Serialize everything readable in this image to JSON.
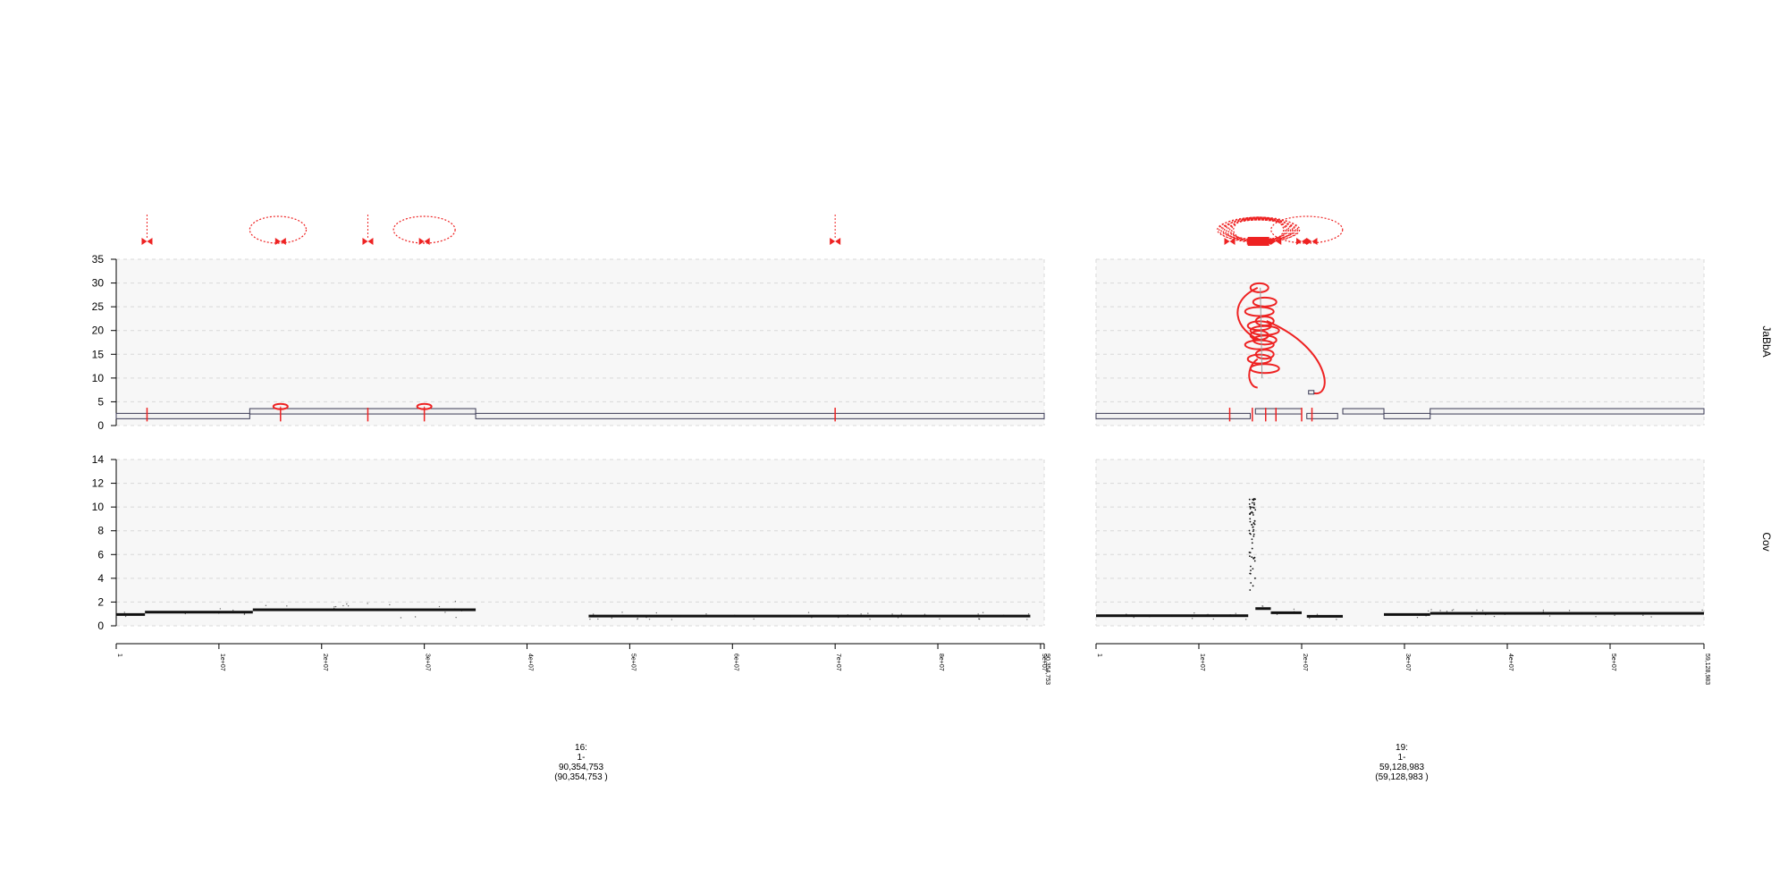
{
  "tracks": {
    "jabba": "JaBbA",
    "cov": "Cov"
  },
  "chart_data": [
    {
      "type": "scatter",
      "name_in_plot": "JaBbA",
      "ylim": [
        0,
        35
      ],
      "yticks": [
        "0",
        "5",
        "10",
        "15",
        "20",
        "25",
        "30",
        "35"
      ],
      "grid": true,
      "chromosomes": [
        {
          "length": 90354753,
          "segments": [
            {
              "start": 0,
              "end": 13000000,
              "cn": 2
            },
            {
              "start": 13000000,
              "end": 35000000,
              "cn": 3
            },
            {
              "start": 35000000,
              "end": 90354753,
              "cn": 2
            }
          ],
          "small_loops": [
            {
              "pos": 16000000,
              "cn": 4
            },
            {
              "pos": 30000000,
              "cn": 4
            }
          ]
        },
        {
          "length": 59128983,
          "segments": [
            {
              "start": 0,
              "end": 15000000,
              "cn": 2
            },
            {
              "start": 15500000,
              "end": 20000000,
              "cn": 3
            },
            {
              "start": 20500000,
              "end": 23500000,
              "cn": 2
            },
            {
              "start": 24000000,
              "end": 28000000,
              "cn": 3
            },
            {
              "start": 28000000,
              "end": 32500000,
              "cn": 2
            },
            {
              "start": 32500000,
              "end": 59128983,
              "cn": 3
            }
          ],
          "amp_region": {
            "start": 14800000,
            "end": 17500000,
            "peak_cn": 29
          }
        }
      ]
    },
    {
      "type": "scatter",
      "name_in_plot": "Cov",
      "ylim": [
        0,
        14
      ],
      "yticks": [
        "0",
        "2",
        "4",
        "6",
        "8",
        "10",
        "12",
        "14"
      ],
      "grid": true,
      "chromosomes": [
        {
          "levels": [
            {
              "start": 0,
              "end": 2800000,
              "value": 0.95
            },
            {
              "start": 2800000,
              "end": 13300000,
              "value": 1.15
            },
            {
              "start": 13300000,
              "end": 35000000,
              "value": 1.35
            },
            {
              "start": 46000000,
              "end": 89000000,
              "value": 0.82
            }
          ]
        },
        {
          "levels": [
            {
              "start": 0,
              "end": 14800000,
              "value": 0.85
            },
            {
              "start": 15500000,
              "end": 17000000,
              "value": 1.45
            },
            {
              "start": 17000000,
              "end": 20000000,
              "value": 1.1
            },
            {
              "start": 20500000,
              "end": 24000000,
              "value": 0.8
            },
            {
              "start": 28000000,
              "end": 32500000,
              "value": 0.95
            },
            {
              "start": 32500000,
              "end": 59128983,
              "value": 1.05
            }
          ],
          "amp_region": {
            "start": 14900000,
            "end": 15500000,
            "peak": 11
          }
        }
      ]
    }
  ],
  "x_axes": [
    {
      "chrom_label": "16:",
      "range_label": "1-",
      "end_label": "90,354,753",
      "paren_label": "(90,354,753 )",
      "ticks": [
        {
          "value": 1,
          "label": "1"
        },
        {
          "value": 10000000,
          "label": "1e+07"
        },
        {
          "value": 20000000,
          "label": "2e+07"
        },
        {
          "value": 30000000,
          "label": "3e+07"
        },
        {
          "value": 40000000,
          "label": "4e+07"
        },
        {
          "value": 50000000,
          "label": "5e+07"
        },
        {
          "value": 60000000,
          "label": "6e+07"
        },
        {
          "value": 70000000,
          "label": "7e+07"
        },
        {
          "value": 80000000,
          "label": "8e+07"
        },
        {
          "value": 90000000,
          "label": "9e+07"
        },
        {
          "value": 90354753,
          "label": "90,354,753"
        }
      ]
    },
    {
      "chrom_label": "19:",
      "range_label": "1-",
      "end_label": "59,128,983",
      "paren_label": "(59,128,983 )",
      "ticks": [
        {
          "value": 1,
          "label": "1"
        },
        {
          "value": 10000000,
          "label": "1e+07"
        },
        {
          "value": 20000000,
          "label": "2e+07"
        },
        {
          "value": 30000000,
          "label": "3e+07"
        },
        {
          "value": 40000000,
          "label": "4e+07"
        },
        {
          "value": 50000000,
          "label": "5e+07"
        },
        {
          "value": 59128983,
          "label": "59,128,983"
        }
      ]
    }
  ],
  "junction_markers": [
    {
      "chrom": 0,
      "pos": 3000000
    },
    {
      "chrom": 0,
      "pos": 16000000
    },
    {
      "chrom": 0,
      "pos": 24500000
    },
    {
      "chrom": 0,
      "pos": 30000000
    },
    {
      "chrom": 0,
      "pos": 70000000
    },
    {
      "chrom": 1,
      "pos": 13000000
    },
    {
      "chrom": 1,
      "pos": 15200000
    },
    {
      "chrom": 1,
      "pos": 16500000
    },
    {
      "chrom": 1,
      "pos": 17500000
    },
    {
      "chrom": 1,
      "pos": 20000000
    },
    {
      "chrom": 1,
      "pos": 21000000
    }
  ],
  "colors": {
    "junction": "#ee2222",
    "segment_edge": "#3a3a55",
    "point": "#111111",
    "panel": "#f7f7f7"
  }
}
